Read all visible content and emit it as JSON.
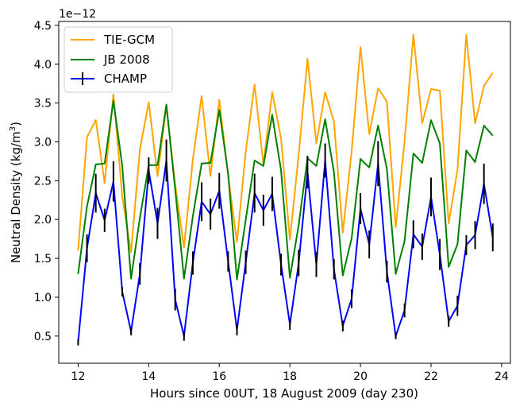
{
  "chart_data": {
    "type": "line",
    "xlabel": "Hours since 00UT, 18 August 2009 (day 230)",
    "ylabel": "Neutral Density (kg/m³)",
    "ylabel_base": "Neutral Density (kg/m",
    "ylabel_sup": "3",
    "ylabel_tail": ")",
    "offset_text": "1e−12",
    "xlim": [
      11.45,
      24.25
    ],
    "ylim": [
      0.15,
      4.55
    ],
    "x_ticks": [
      12,
      14,
      16,
      18,
      20,
      22,
      24
    ],
    "y_ticks": [
      0.5,
      1.0,
      1.5,
      2.0,
      2.5,
      3.0,
      3.5,
      4.0,
      4.5
    ],
    "y_tick_labels": [
      "0.5",
      "1.0",
      "1.5",
      "2.0",
      "2.5",
      "3.0",
      "3.5",
      "4.0",
      "4.5"
    ],
    "legend_position": "top-left",
    "x": [
      12.0,
      12.25,
      12.5,
      12.75,
      13.0,
      13.25,
      13.5,
      13.75,
      14.0,
      14.25,
      14.5,
      14.75,
      15.0,
      15.25,
      15.5,
      15.75,
      16.0,
      16.25,
      16.5,
      16.75,
      17.0,
      17.25,
      17.5,
      17.75,
      18.0,
      18.25,
      18.5,
      18.75,
      19.0,
      19.25,
      19.5,
      19.75,
      20.0,
      20.25,
      20.5,
      20.75,
      21.0,
      21.25,
      21.5,
      21.75,
      22.0,
      22.25,
      22.5,
      22.75,
      23.0,
      23.25,
      23.5,
      23.75
    ],
    "series": [
      {
        "name": "TIE-GCM",
        "color": "#ffa500",
        "values": [
          1.6,
          3.06,
          3.28,
          2.47,
          3.61,
          2.3,
          1.58,
          2.9,
          3.51,
          2.56,
          3.46,
          2.45,
          1.64,
          2.77,
          3.59,
          2.56,
          3.54,
          2.57,
          1.71,
          2.88,
          3.74,
          2.71,
          3.64,
          3.04,
          1.74,
          2.84,
          4.07,
          2.98,
          3.64,
          3.26,
          1.83,
          2.88,
          4.22,
          3.1,
          3.69,
          3.52,
          1.9,
          3.0,
          4.38,
          3.24,
          3.68,
          3.66,
          1.95,
          2.64,
          4.38,
          3.24,
          3.72,
          3.89
        ]
      },
      {
        "name": "JB 2008",
        "color": "#008000",
        "values": [
          1.3,
          2.17,
          2.71,
          2.72,
          3.53,
          2.69,
          1.24,
          2.02,
          2.7,
          2.7,
          3.48,
          2.39,
          1.24,
          2.04,
          2.72,
          2.73,
          3.41,
          2.59,
          1.23,
          2.0,
          2.76,
          2.69,
          3.35,
          2.63,
          1.25,
          1.93,
          2.79,
          2.69,
          3.29,
          2.61,
          1.28,
          1.76,
          2.78,
          2.67,
          3.21,
          2.65,
          1.3,
          1.72,
          2.85,
          2.73,
          3.28,
          2.98,
          1.39,
          1.68,
          2.89,
          2.74,
          3.21,
          3.08
        ]
      },
      {
        "name": "CHAMP",
        "color": "#0000ff",
        "values": [
          0.42,
          1.63,
          2.34,
          1.99,
          2.49,
          1.07,
          0.56,
          1.3,
          2.63,
          1.95,
          2.76,
          0.97,
          0.5,
          1.44,
          2.23,
          2.07,
          2.37,
          1.46,
          0.58,
          1.45,
          2.34,
          2.12,
          2.33,
          1.42,
          0.65,
          1.44,
          2.61,
          1.42,
          2.76,
          1.36,
          0.63,
          0.98,
          2.14,
          1.68,
          2.72,
          1.33,
          0.5,
          0.83,
          1.81,
          1.65,
          2.29,
          1.55,
          0.69,
          0.89,
          1.67,
          1.8,
          2.46,
          1.77
        ],
        "errors": [
          0.04,
          0.18,
          0.25,
          0.15,
          0.26,
          0.06,
          0.05,
          0.14,
          0.17,
          0.2,
          0.27,
          0.14,
          0.06,
          0.15,
          0.25,
          0.2,
          0.23,
          0.13,
          0.07,
          0.15,
          0.25,
          0.2,
          0.22,
          0.14,
          0.07,
          0.17,
          0.21,
          0.16,
          0.22,
          0.13,
          0.07,
          0.12,
          0.2,
          0.18,
          0.29,
          0.14,
          0.04,
          0.09,
          0.18,
          0.17,
          0.25,
          0.2,
          0.07,
          0.13,
          0.13,
          0.18,
          0.26,
          0.18
        ]
      }
    ]
  }
}
